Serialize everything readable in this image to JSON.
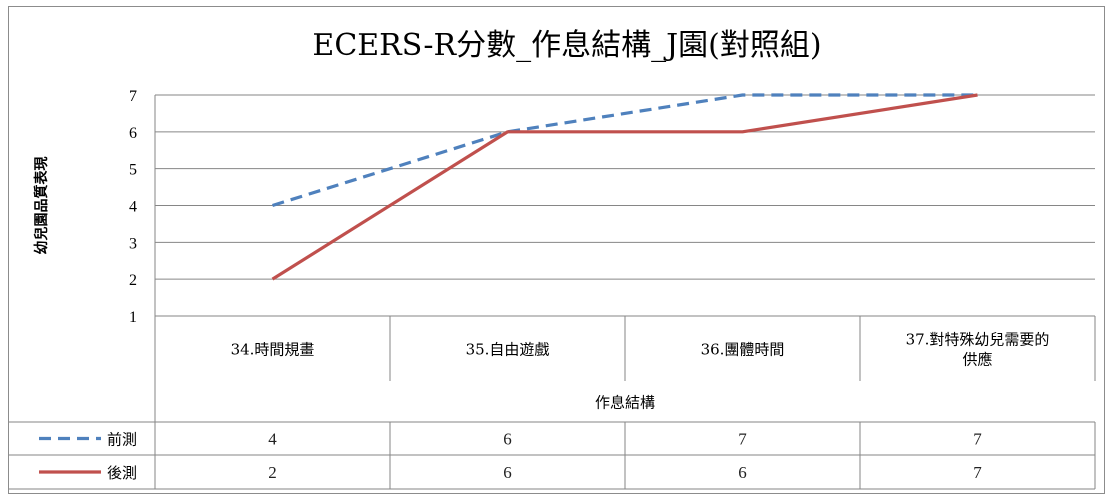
{
  "chart_data": {
    "type": "line",
    "title": "ECERS-R分數_作息結構_J園(對照組)",
    "xlabel": "作息結構",
    "ylabel": "幼兒園品質表現",
    "categories": [
      "34.時間規畫",
      "35.自由遊戲",
      "36.團體時間",
      "37.對特殊幼兒需要的供應"
    ],
    "category_lines": [
      [
        "34.時間規畫"
      ],
      [
        "35.自由遊戲"
      ],
      [
        "36.團體時間"
      ],
      [
        "37.對特殊幼兒需要的",
        "供應"
      ]
    ],
    "ylim": [
      1,
      7
    ],
    "yticks": [
      1,
      2,
      3,
      4,
      5,
      6,
      7
    ],
    "grid": true,
    "legend_placement": "data-table",
    "series": [
      {
        "name": "前測",
        "values": [
          4,
          6,
          7,
          7
        ],
        "color": "#4F81BD",
        "dash": "dashed"
      },
      {
        "name": "後測",
        "values": [
          2,
          6,
          6,
          7
        ],
        "color": "#C0504D",
        "dash": "solid"
      }
    ]
  }
}
